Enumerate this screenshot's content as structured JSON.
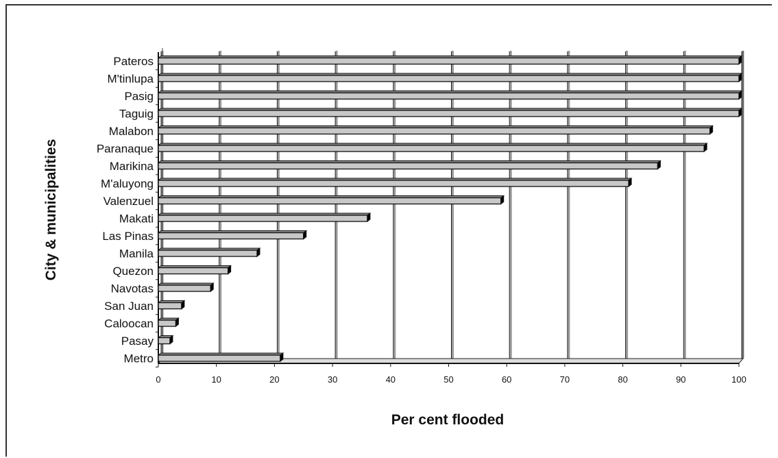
{
  "chart_data": {
    "type": "bar",
    "orientation": "horizontal",
    "categories": [
      "Pateros",
      "M'tinlupa",
      "Pasig",
      "Taguig",
      "Malabon",
      "Paranaque",
      "Marikina",
      "M'aluyong",
      "Valenzuel",
      "Makati",
      "Las Pinas",
      "Manila",
      "Quezon",
      "Navotas",
      "San Juan",
      "Caloocan",
      "Pasay",
      "Metro"
    ],
    "values": [
      100,
      100,
      100,
      100,
      95,
      94,
      86,
      81,
      59,
      36,
      25,
      17,
      12,
      9,
      4,
      3,
      2,
      21
    ],
    "xlabel": "Per cent flooded",
    "ylabel": "City & municipalities",
    "xlim": [
      0,
      100
    ],
    "xticks": [
      "0",
      "10",
      "20",
      "30",
      "40",
      "50",
      "60",
      "70",
      "80",
      "90",
      "100"
    ],
    "grid": true,
    "legend": "none",
    "colors": {
      "bar_fill": "#c8c8c8",
      "bar_edge": "#111111",
      "bar_shadow": "#000000",
      "gridline": "#222222",
      "wall": "#9a9a9a"
    }
  }
}
